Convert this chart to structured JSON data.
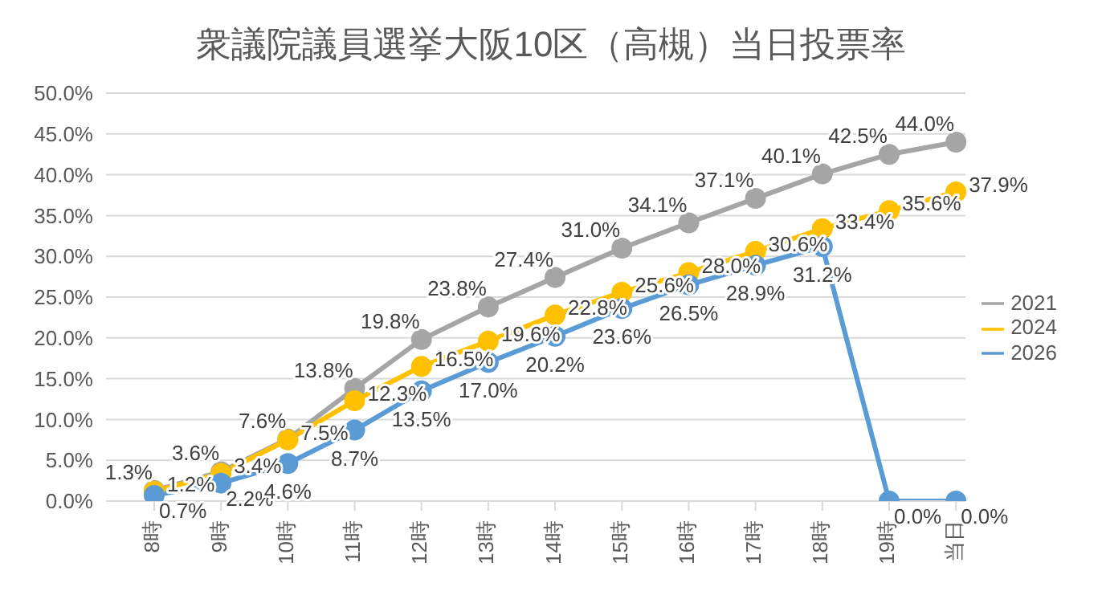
{
  "chart_data": {
    "type": "line",
    "title": "衆議院議員選挙大阪10区（高槻）当日投票率",
    "categories": [
      "8時",
      "9時",
      "10時",
      "11時",
      "12時",
      "13時",
      "14時",
      "15時",
      "16時",
      "17時",
      "18時",
      "19時",
      "当日"
    ],
    "series": [
      {
        "name": "2021",
        "color": "#a5a5a5",
        "values": [
          1.3,
          3.6,
          7.6,
          13.8,
          19.8,
          23.8,
          27.4,
          31.0,
          34.1,
          37.1,
          40.1,
          42.5,
          44.0
        ],
        "value_labels": [
          "1.3%",
          "3.6%",
          "7.6%",
          "13.8%",
          "19.8%",
          "23.8%",
          "27.4%",
          "31.0%",
          "34.1%",
          "37.1%",
          "40.1%",
          "42.5%",
          "44.0%"
        ]
      },
      {
        "name": "2024",
        "color": "#ffc000",
        "values": [
          1.2,
          3.4,
          7.5,
          12.3,
          16.5,
          19.6,
          22.8,
          25.6,
          28.0,
          30.6,
          33.4,
          35.6,
          37.9
        ],
        "value_labels": [
          "1.2%",
          "3.4%",
          "7.5%",
          "12.3%",
          "16.5%",
          "19.6%",
          "22.8%",
          "25.6%",
          "28.0%",
          "30.6%",
          "33.4%",
          "35.6%",
          "37.9%"
        ]
      },
      {
        "name": "2026",
        "color": "#5b9bd5",
        "values": [
          0.7,
          2.2,
          4.6,
          8.7,
          13.5,
          17.0,
          20.2,
          23.6,
          26.5,
          28.9,
          31.2,
          0.0,
          0.0
        ],
        "value_labels": [
          "0.7%",
          "2.2%",
          "4.6%",
          "8.7%",
          "13.5%",
          "17.0%",
          "20.2%",
          "23.6%",
          "26.5%",
          "28.9%",
          "31.2%",
          "0.0%",
          "0.0%"
        ]
      }
    ],
    "ylim": [
      0,
      50
    ],
    "yticks": [
      {
        "value": 0,
        "label": "0.0%"
      },
      {
        "value": 5,
        "label": "5.0%"
      },
      {
        "value": 10,
        "label": "10.0%"
      },
      {
        "value": 15,
        "label": "15.0%"
      },
      {
        "value": 20,
        "label": "20.0%"
      },
      {
        "value": 25,
        "label": "25.0%"
      },
      {
        "value": 30,
        "label": "30.0%"
      },
      {
        "value": 35,
        "label": "35.0%"
      },
      {
        "value": 40,
        "label": "40.0%"
      },
      {
        "value": 45,
        "label": "45.0%"
      },
      {
        "value": 50,
        "label": "50.0%"
      }
    ],
    "grid": "y",
    "legend": "right",
    "marker": "circle",
    "line_style": "solid"
  }
}
